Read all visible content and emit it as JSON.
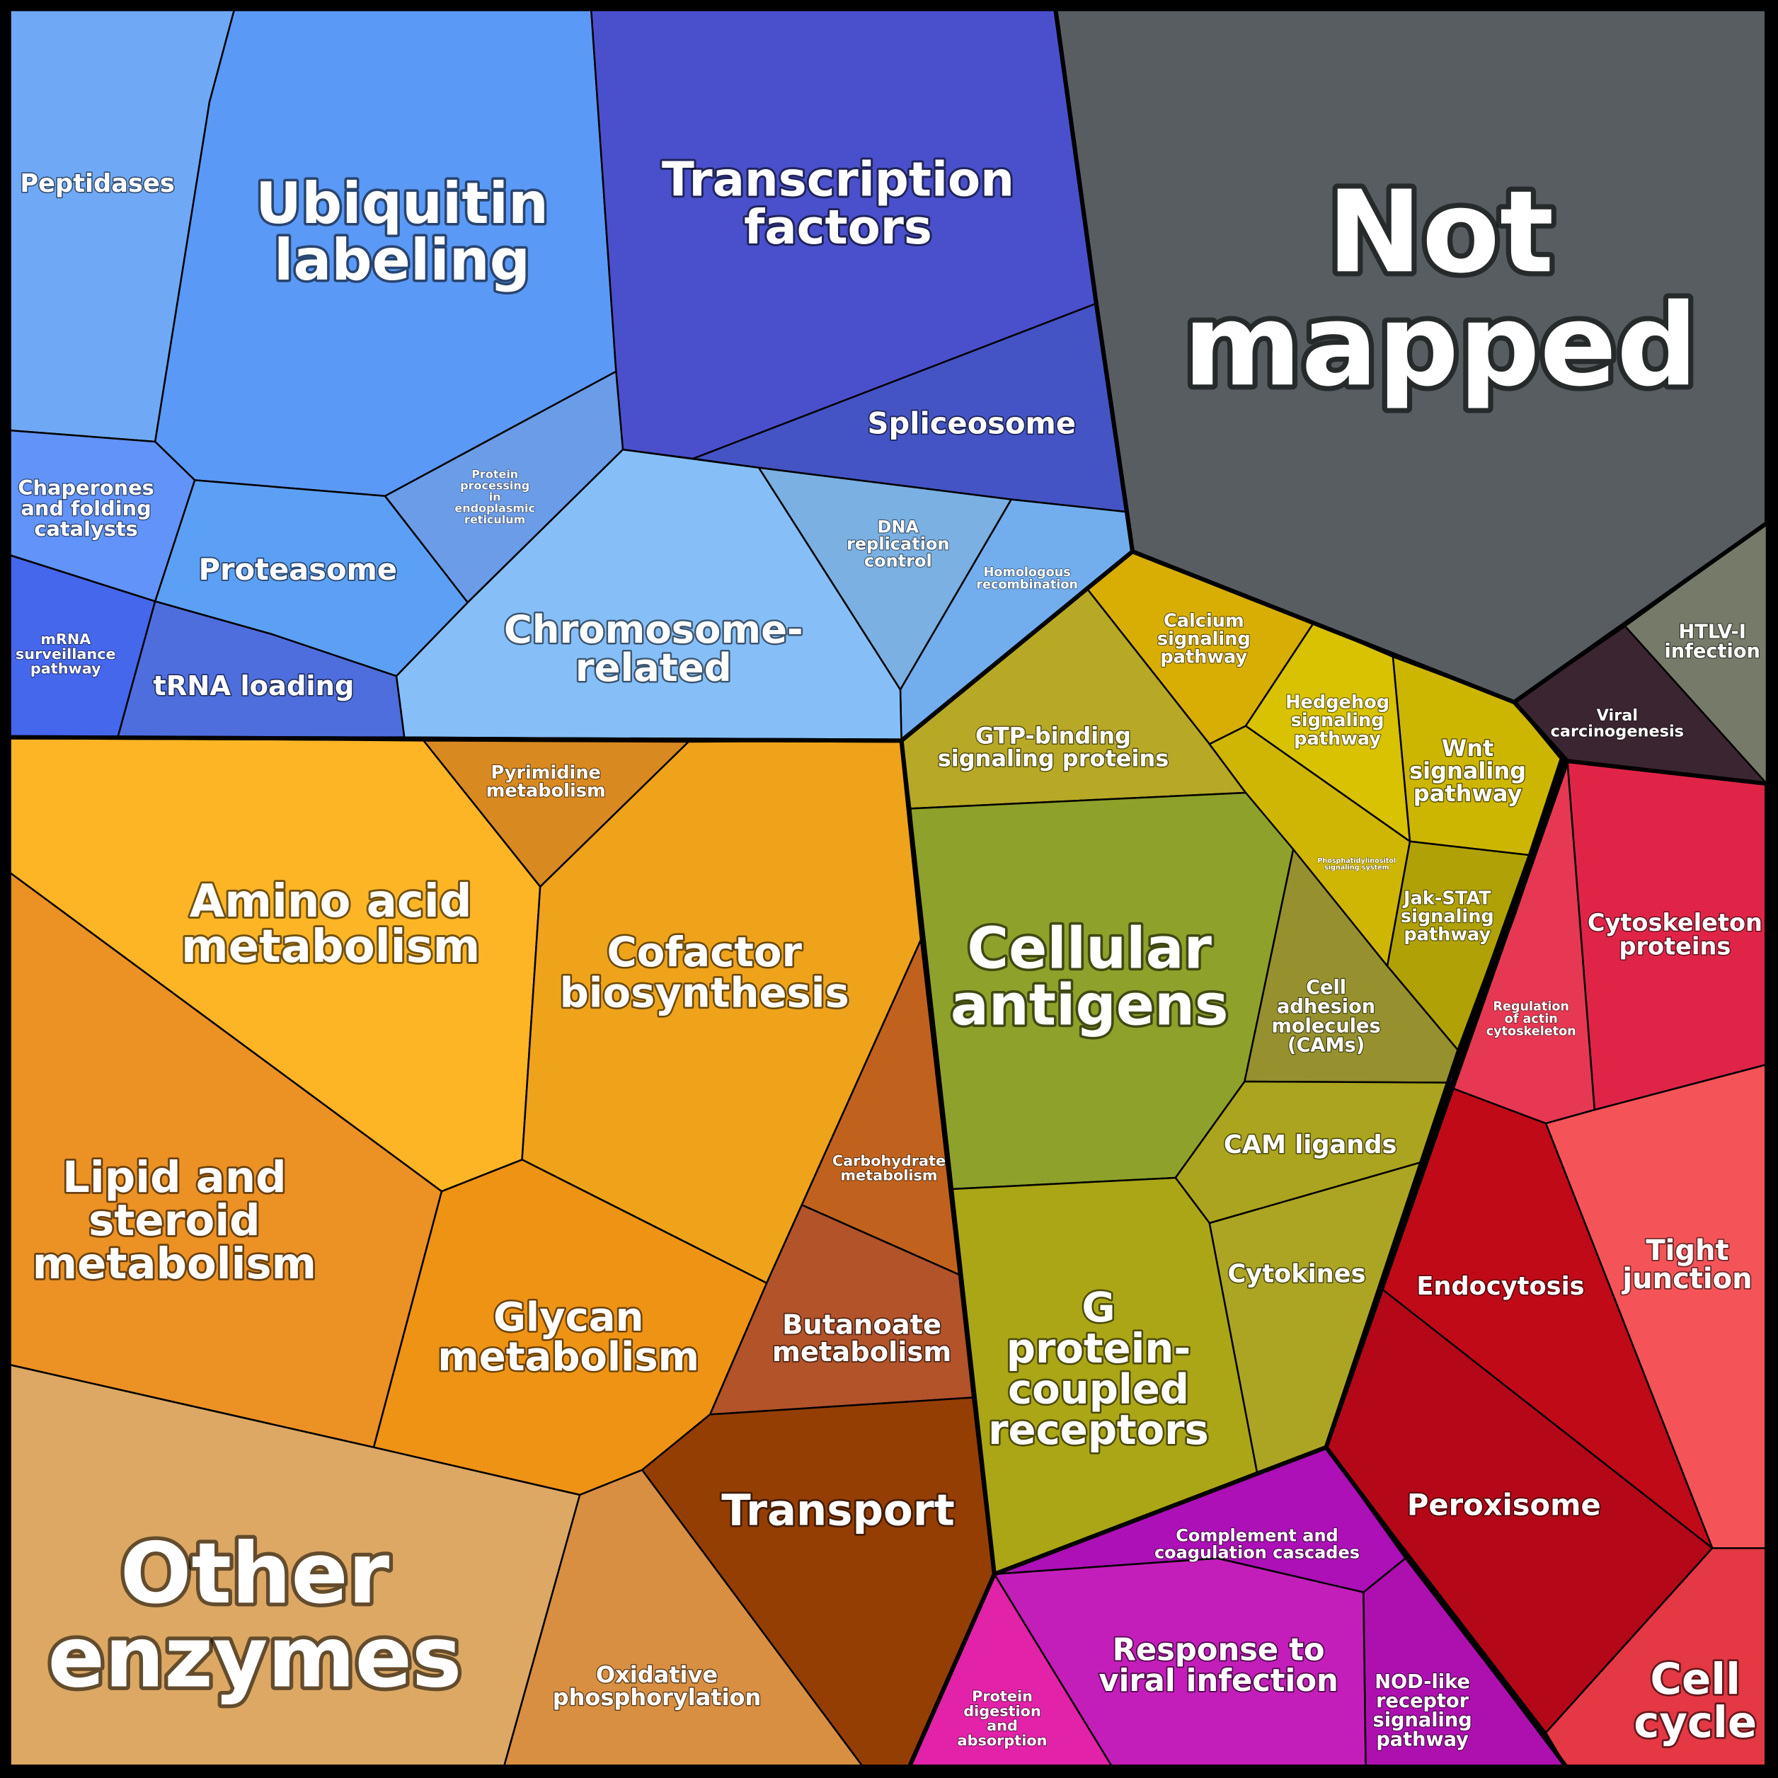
{
  "groups": {
    "genetic": {
      "color": "#4a6cf0"
    },
    "unmapped": {
      "color": "#575d61"
    },
    "metabolism": {
      "color": "#f0a22a"
    },
    "signaling": {
      "color": "#a9a21a"
    },
    "cellular": {
      "color": "#d0242e"
    },
    "organismal": {
      "color": "#b412b4"
    }
  },
  "cells": {
    "peptidases": {
      "label": [
        "Peptidases"
      ],
      "color": "#6fa9f5"
    },
    "ubiquitin": {
      "label": [
        "Ubiquitin",
        "labeling"
      ],
      "color": "#5b99f7"
    },
    "transcription": {
      "label": [
        "Transcription",
        "factors"
      ],
      "color": "#4a50cc"
    },
    "not_mapped": {
      "label": [
        "Not",
        "mapped"
      ],
      "color": "#575d61"
    },
    "spliceosome": {
      "label": [
        "Spliceosome"
      ],
      "color": "#4454c4"
    },
    "chaperones": {
      "label": [
        "Chaperones",
        "and folding",
        "catalysts"
      ],
      "color": "#6193f8"
    },
    "proteasome": {
      "label": [
        "Proteasome"
      ],
      "color": "#5ca0f5"
    },
    "protein_processing": {
      "label": [
        "Protein",
        "processing",
        "in",
        "endoplasmic",
        "reticulum"
      ],
      "color": "#6a9ce8"
    },
    "dna_replication": {
      "label": [
        "DNA",
        "replication",
        "control"
      ],
      "color": "#7ab0e2"
    },
    "homologous": {
      "label": [
        "Homologous",
        "recombination"
      ],
      "color": "#72aeee"
    },
    "chromosome": {
      "label": [
        "Chromosome-",
        "related"
      ],
      "color": "#86bff8"
    },
    "mrna": {
      "label": [
        "mRNA",
        "surveillance",
        "pathway"
      ],
      "color": "#4567ec"
    },
    "trna": {
      "label": [
        "tRNA loading"
      ],
      "color": "#4e6ede"
    },
    "pyrimidine": {
      "label": [
        "Pyrimidine",
        "metabolism"
      ],
      "color": "#d88920"
    },
    "amino_acid": {
      "label": [
        "Amino acid",
        "metabolism"
      ],
      "color": "#fdb526"
    },
    "cofactor": {
      "label": [
        "Cofactor",
        "biosynthesis"
      ],
      "color": "#eea31a"
    },
    "lipid": {
      "label": [
        "Lipid and",
        "steroid",
        "metabolism"
      ],
      "color": "#ec9124"
    },
    "glycan": {
      "label": [
        "Glycan",
        "metabolism"
      ],
      "color": "#ee9314"
    },
    "carbohydrate": {
      "label": [
        "Carbohydrate",
        "metabolism"
      ],
      "color": "#c0621e"
    },
    "butanoate": {
      "label": [
        "Butanoate",
        "metabolism"
      ],
      "color": "#b2532a"
    },
    "other_enzymes": {
      "label": [
        "Other",
        "enzymes"
      ],
      "color": "#dca864"
    },
    "oxidative": {
      "label": [
        "Oxidative",
        "phosphorylation"
      ],
      "color": "#d88f42"
    },
    "transport": {
      "label": [
        "Transport"
      ],
      "color": "#943e04"
    },
    "htlv": {
      "label": [
        "HTLV-I",
        "infection"
      ],
      "color": "#767a68"
    },
    "viral_carcino": {
      "label": [
        "Viral",
        "carcinogenesis"
      ],
      "color": "#3b2530"
    },
    "calcium": {
      "label": [
        "Calcium",
        "signaling",
        "pathway"
      ],
      "color": "#d8ae04"
    },
    "hedgehog": {
      "label": [
        "Hedgehog",
        "signaling",
        "pathway"
      ],
      "color": "#d8c202"
    },
    "wnt": {
      "label": [
        "Wnt",
        "signaling",
        "pathway"
      ],
      "color": "#ccb602"
    },
    "gtp": {
      "label": [
        "GTP-binding",
        "signaling proteins"
      ],
      "color": "#b7a826"
    },
    "phosphatidyl": {
      "label": [
        "Phosphatidylinositol",
        "signaling system"
      ],
      "color": "#d0b604"
    },
    "jak_stat": {
      "label": [
        "Jak-STAT",
        "signaling",
        "pathway"
      ],
      "color": "#b0a206"
    },
    "cellular_antigens": {
      "label": [
        "Cellular",
        "antigens"
      ],
      "color": "#8ea12a"
    },
    "cam": {
      "label": [
        "Cell",
        "adhesion",
        "molecules",
        "(CAMs)"
      ],
      "color": "#96902e"
    },
    "cam_ligands": {
      "label": [
        "CAM ligands"
      ],
      "color": "#aba41e"
    },
    "gpcr": {
      "label": [
        "G",
        "protein-",
        "coupled",
        "receptors"
      ],
      "color": "#aaa616"
    },
    "cytokines": {
      "label": [
        "Cytokines"
      ],
      "color": "#aca524"
    },
    "cytoskeleton": {
      "label": [
        "Cytoskeleton",
        "proteins"
      ],
      "color": "#e02448"
    },
    "actin": {
      "label": [
        "Regulation",
        "of actin",
        "cytoskeleton"
      ],
      "color": "#e63852"
    },
    "tight_junction": {
      "label": [
        "Tight",
        "junction"
      ],
      "color": "#f45458"
    },
    "endocytosis": {
      "label": [
        "Endocytosis"
      ],
      "color": "#c00a18"
    },
    "peroxisome": {
      "label": [
        "Peroxisome"
      ],
      "color": "#b40818"
    },
    "cell_cycle": {
      "label": [
        "Cell",
        "cycle"
      ],
      "color": "#e43844"
    },
    "complement": {
      "label": [
        "Complement and",
        "coagulation cascades"
      ],
      "color": "#ac10b6"
    },
    "viral_response": {
      "label": [
        "Response to",
        "viral infection"
      ],
      "color": "#c41eba"
    },
    "nod": {
      "label": [
        "NOD-like",
        "receptor",
        "signaling",
        "pathway"
      ],
      "color": "#ae10b0"
    },
    "protein_digestion": {
      "label": [
        "Protein",
        "digestion",
        "and",
        "absorption"
      ],
      "color": "#e222a8"
    }
  }
}
